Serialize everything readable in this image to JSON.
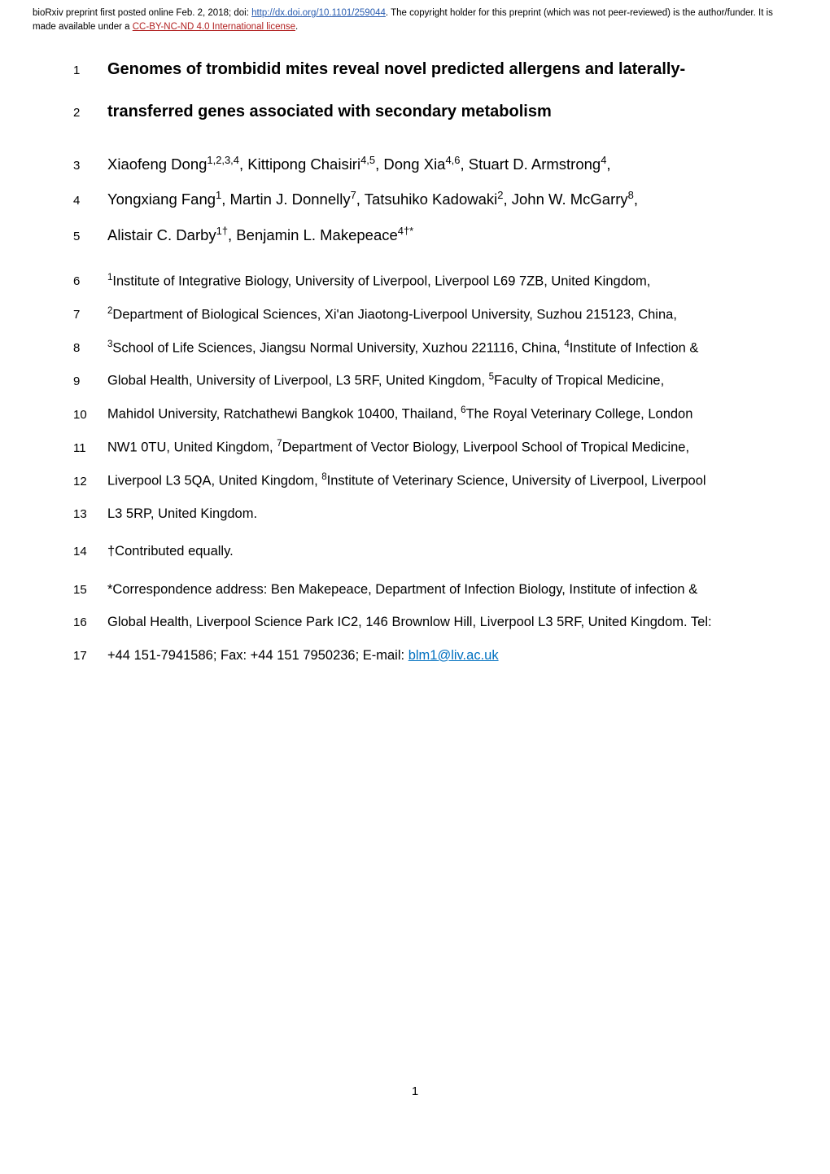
{
  "header": {
    "prefix": "bioRxiv preprint first posted online Feb. 2, 2018; doi: ",
    "doi_url": "http://dx.doi.org/10.1101/259044",
    "mid": ". The copyright holder for this preprint (which was not peer-reviewed) is the author/funder. It is made available under a ",
    "license_url": "CC-BY-NC-ND 4.0 International license",
    "suffix": "."
  },
  "lines": [
    {
      "num": "1",
      "kind": "title",
      "text": "Genomes of trombidid mites reveal novel predicted allergens and laterally-"
    },
    {
      "num": "2",
      "kind": "title",
      "text": "transferred genes associated with secondary metabolism"
    },
    {
      "num": "3",
      "kind": "author",
      "html": "Xiaofeng Dong<sup>1,2,3,4</sup>, Kittipong Chaisiri<sup>4,5</sup>, Dong Xia<sup>4,6</sup>, Stuart D. Armstrong<sup>4</sup>,"
    },
    {
      "num": "4",
      "kind": "author",
      "html": "Yongxiang Fang<sup>1</sup>, Martin J. Donnelly<sup>7</sup>, Tatsuhiko Kadowaki<sup>2</sup>, John W. McGarry<sup>8</sup>,"
    },
    {
      "num": "5",
      "kind": "author",
      "html": "Alistair C. Darby<sup>1†</sup>, Benjamin L. Makepeace<sup>4†*</sup>"
    },
    {
      "num": "6",
      "kind": "aff",
      "html": "<sup>1</sup>Institute of Integrative Biology, University of Liverpool, Liverpool L69 7ZB, United Kingdom,"
    },
    {
      "num": "7",
      "kind": "aff",
      "html": "<sup>2</sup>Department of Biological Sciences, Xi'an Jiaotong-Liverpool University, Suzhou 215123, China,"
    },
    {
      "num": "8",
      "kind": "aff",
      "html": "<sup>3</sup>School of Life Sciences, Jiangsu Normal University, Xuzhou 221116, China, <sup>4</sup>Institute of Infection &"
    },
    {
      "num": "9",
      "kind": "aff",
      "html": "Global Health, University of Liverpool, L3 5RF, United Kingdom, <sup>5</sup>Faculty of Tropical Medicine,"
    },
    {
      "num": "10",
      "kind": "aff",
      "html": "Mahidol University, Ratchathewi Bangkok 10400, Thailand, <sup>6</sup>The Royal Veterinary College, London"
    },
    {
      "num": "11",
      "kind": "aff",
      "html": "NW1 0TU, United Kingdom, <sup>7</sup>Department of Vector Biology, Liverpool School of Tropical Medicine,"
    },
    {
      "num": "12",
      "kind": "aff",
      "html": "Liverpool L3 5QA, United Kingdom, <sup>8</sup>Institute of Veterinary Science, University of Liverpool, Liverpool"
    },
    {
      "num": "13",
      "kind": "aff",
      "html": "L3 5RP, United Kingdom."
    },
    {
      "num": "14",
      "kind": "aff",
      "html": "†Contributed equally."
    },
    {
      "num": "15",
      "kind": "aff",
      "html": "*Correspondence address: Ben Makepeace, Department of Infection Biology, Institute of infection &"
    },
    {
      "num": "16",
      "kind": "aff",
      "html": "Global Health, Liverpool Science Park IC2, 146 Brownlow Hill, Liverpool L3 5RF, United Kingdom. Tel:"
    },
    {
      "num": "17",
      "kind": "aff",
      "html": "+44 151-7941586; Fax: +44 151 7950236; E-mail: <a class=\"mail\" data-name=\"email-link\" data-interactable=\"true\">blm1@liv.ac.uk</a>"
    }
  ],
  "page_number": "1",
  "layout": {
    "gaps_after": {
      "2": "gap2",
      "5": "gap2",
      "13": "gap",
      "14": "gap"
    }
  }
}
